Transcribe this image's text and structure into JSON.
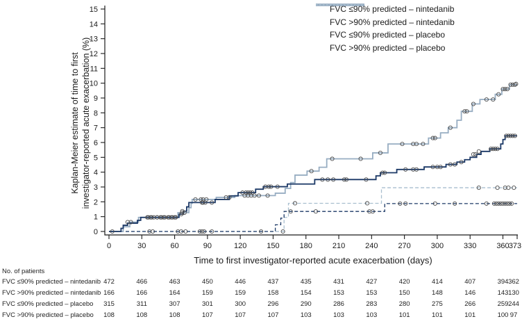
{
  "chart_data": {
    "type": "line",
    "subtype": "kaplan-meier-step",
    "title": "",
    "ylabel": "Kaplan-Meier estimate of time to first\ninvestigator-reported acute exacerbation (%)",
    "xlabel": "Time to first investigator-reported acute exacerbation (days)",
    "xlim": [
      0,
      373
    ],
    "ylim": [
      0,
      15
    ],
    "x_ticks": [
      0,
      30,
      60,
      90,
      120,
      150,
      180,
      210,
      240,
      270,
      300,
      330,
      360,
      373
    ],
    "y_ticks": [
      0,
      1,
      2,
      3,
      4,
      5,
      6,
      7,
      8,
      9,
      10,
      11,
      12,
      13,
      14,
      15
    ],
    "grid": false,
    "legend_position": "top-right",
    "marker_color": "#4d4d4d",
    "axis_color": "#1a1a1a",
    "series": [
      {
        "name": "FVC ≤90% predicted – nintedanib",
        "color": "#1b3866",
        "dash": "solid",
        "final_value": 6.45,
        "steps": [
          [
            0,
            0
          ],
          [
            11,
            0.21
          ],
          [
            13,
            0.42
          ],
          [
            17,
            0.56
          ],
          [
            26,
            0.75
          ],
          [
            29,
            0.95
          ],
          [
            64,
            1.16
          ],
          [
            68,
            1.37
          ],
          [
            71,
            1.66
          ],
          [
            73,
            1.95
          ],
          [
            97,
            2.16
          ],
          [
            110,
            2.4
          ],
          [
            118,
            2.62
          ],
          [
            134,
            2.85
          ],
          [
            141,
            3.02
          ],
          [
            163,
            3.2
          ],
          [
            188,
            3.5
          ],
          [
            244,
            3.75
          ],
          [
            248,
            3.96
          ],
          [
            263,
            4.18
          ],
          [
            288,
            4.35
          ],
          [
            308,
            4.52
          ],
          [
            318,
            4.68
          ],
          [
            325,
            4.84
          ],
          [
            330,
            5.0
          ],
          [
            336,
            5.2
          ],
          [
            340,
            5.4
          ],
          [
            348,
            5.57
          ],
          [
            358,
            5.9
          ],
          [
            360,
            6.2
          ],
          [
            362,
            6.45
          ]
        ],
        "censors": [
          [
            3,
            0
          ],
          [
            35,
            0.95
          ],
          [
            38,
            0.95
          ],
          [
            41,
            0.95
          ],
          [
            44,
            0.95
          ],
          [
            47,
            0.95
          ],
          [
            50,
            0.95
          ],
          [
            54,
            0.95
          ],
          [
            57,
            0.95
          ],
          [
            60,
            0.95
          ],
          [
            66,
            1.16
          ],
          [
            67,
            1.37
          ],
          [
            85,
            1.95
          ],
          [
            86,
            1.95
          ],
          [
            88,
            1.95
          ],
          [
            94,
            1.95
          ],
          [
            122,
            2.62
          ],
          [
            125,
            2.62
          ],
          [
            127,
            2.62
          ],
          [
            129,
            2.62
          ],
          [
            131,
            2.62
          ],
          [
            143,
            3.02
          ],
          [
            146,
            3.02
          ],
          [
            148,
            3.02
          ],
          [
            154,
            3.02
          ],
          [
            195,
            3.5
          ],
          [
            200,
            3.5
          ],
          [
            205,
            3.5
          ],
          [
            215,
            3.5
          ],
          [
            217,
            3.5
          ],
          [
            235,
            3.5
          ],
          [
            250,
            3.96
          ],
          [
            252,
            3.96
          ],
          [
            271,
            4.18
          ],
          [
            278,
            4.18
          ],
          [
            281,
            4.18
          ],
          [
            296,
            4.35
          ],
          [
            300,
            4.35
          ],
          [
            303,
            4.35
          ],
          [
            312,
            4.52
          ],
          [
            316,
            4.52
          ],
          [
            322,
            4.68
          ],
          [
            333,
            5.2
          ],
          [
            335,
            5.2
          ],
          [
            338,
            5.4
          ],
          [
            349,
            5.57
          ],
          [
            351,
            5.57
          ],
          [
            353,
            5.57
          ],
          [
            355,
            5.57
          ],
          [
            363,
            6.45
          ],
          [
            365,
            6.45
          ],
          [
            367,
            6.45
          ],
          [
            369,
            6.45
          ],
          [
            371,
            6.45
          ]
        ]
      },
      {
        "name": "FVC >90% predicted – nintedanib",
        "color": "#1b3866",
        "dash": "dashed",
        "final_value": 1.88,
        "steps": [
          [
            0,
            0
          ],
          [
            152,
            0.45
          ],
          [
            157,
            0.9
          ],
          [
            160,
            1.35
          ],
          [
            252,
            1.88
          ]
        ],
        "censors": [
          [
            40,
            0
          ],
          [
            63,
            0
          ],
          [
            85,
            0
          ],
          [
            94,
            0
          ],
          [
            166,
            1.35
          ],
          [
            189,
            1.35
          ],
          [
            238,
            1.35
          ],
          [
            241,
            1.35
          ],
          [
            266,
            1.88
          ],
          [
            271,
            1.88
          ],
          [
            298,
            1.88
          ],
          [
            316,
            1.88
          ],
          [
            345,
            1.88
          ],
          [
            352,
            1.88
          ],
          [
            354,
            1.88
          ],
          [
            356,
            1.88
          ],
          [
            358,
            1.88
          ],
          [
            360,
            1.88
          ],
          [
            362,
            1.88
          ],
          [
            364,
            1.88
          ],
          [
            366,
            1.88
          ],
          [
            368,
            1.88
          ]
        ]
      },
      {
        "name": "FVC ≤90% predicted – placebo",
        "color": "#97adc2",
        "dash": "solid",
        "final_value": 9.9,
        "steps": [
          [
            0,
            0
          ],
          [
            13,
            0.32
          ],
          [
            19,
            0.63
          ],
          [
            27,
            0.95
          ],
          [
            63,
            1.27
          ],
          [
            73,
            1.6
          ],
          [
            75,
            1.9
          ],
          [
            76,
            2.16
          ],
          [
            98,
            2.3
          ],
          [
            115,
            2.42
          ],
          [
            152,
            2.58
          ],
          [
            161,
            2.9
          ],
          [
            166,
            3.3
          ],
          [
            170,
            3.8
          ],
          [
            181,
            4.07
          ],
          [
            192,
            4.33
          ],
          [
            199,
            4.9
          ],
          [
            241,
            5.3
          ],
          [
            255,
            5.9
          ],
          [
            292,
            6.3
          ],
          [
            303,
            6.65
          ],
          [
            310,
            7.0
          ],
          [
            318,
            7.5
          ],
          [
            322,
            8.1
          ],
          [
            332,
            8.6
          ],
          [
            339,
            8.9
          ],
          [
            353,
            9.25
          ],
          [
            359,
            9.6
          ],
          [
            366,
            9.9
          ]
        ],
        "censors": [
          [
            17,
            0.63
          ],
          [
            20,
            0.63
          ],
          [
            36,
            0.95
          ],
          [
            39,
            0.95
          ],
          [
            44,
            0.95
          ],
          [
            48,
            0.95
          ],
          [
            51,
            0.95
          ],
          [
            55,
            0.95
          ],
          [
            58,
            0.95
          ],
          [
            61,
            0.95
          ],
          [
            67,
            1.27
          ],
          [
            69,
            1.27
          ],
          [
            79,
            2.16
          ],
          [
            84,
            2.16
          ],
          [
            86,
            2.16
          ],
          [
            89,
            2.16
          ],
          [
            107,
            2.3
          ],
          [
            110,
            2.3
          ],
          [
            124,
            2.42
          ],
          [
            127,
            2.42
          ],
          [
            130,
            2.42
          ],
          [
            133,
            2.42
          ],
          [
            137,
            2.42
          ],
          [
            145,
            2.42
          ],
          [
            185,
            4.07
          ],
          [
            204,
            4.9
          ],
          [
            230,
            4.9
          ],
          [
            248,
            5.3
          ],
          [
            268,
            5.9
          ],
          [
            278,
            5.9
          ],
          [
            281,
            5.9
          ],
          [
            287,
            5.9
          ],
          [
            296,
            6.3
          ],
          [
            298,
            6.3
          ],
          [
            312,
            7.0
          ],
          [
            325,
            8.1
          ],
          [
            327,
            8.1
          ],
          [
            333,
            8.6
          ],
          [
            345,
            8.9
          ],
          [
            351,
            8.9
          ],
          [
            356,
            9.25
          ],
          [
            360,
            9.6
          ],
          [
            362,
            9.6
          ],
          [
            364,
            9.6
          ],
          [
            367,
            9.9
          ],
          [
            369,
            9.9
          ],
          [
            371,
            9.9
          ],
          [
            372,
            9.95
          ]
        ]
      },
      {
        "name": "FVC >90% predicted – placebo",
        "color": "#a8becf",
        "dash": "dashed",
        "final_value": 2.95,
        "steps": [
          [
            0,
            0
          ],
          [
            160,
            0.95
          ],
          [
            164,
            1.9
          ],
          [
            249,
            2.95
          ]
        ],
        "censors": [
          [
            37,
            0
          ],
          [
            66,
            0
          ],
          [
            70,
            0
          ],
          [
            83,
            0
          ],
          [
            87,
            0
          ],
          [
            139,
            0
          ],
          [
            159,
            0
          ],
          [
            170,
            1.9
          ],
          [
            236,
            1.9
          ],
          [
            338,
            2.95
          ],
          [
            355,
            2.95
          ],
          [
            362,
            2.95
          ],
          [
            365,
            2.95
          ],
          [
            370,
            2.95
          ]
        ]
      }
    ]
  },
  "risk_table": {
    "header": "No. of patients",
    "columns_days": [
      0,
      30,
      60,
      90,
      120,
      150,
      180,
      210,
      240,
      270,
      300,
      330,
      360,
      373
    ],
    "rows": [
      {
        "label": "FVC ≤90% predicted – nintedanib",
        "values": [
          472,
          466,
          463,
          450,
          446,
          437,
          435,
          431,
          427,
          420,
          414,
          407,
          394,
          362
        ]
      },
      {
        "label": "FVC >90% predicted – nintedanib",
        "values": [
          166,
          166,
          164,
          159,
          159,
          158,
          154,
          153,
          153,
          150,
          148,
          146,
          143,
          130
        ]
      },
      {
        "label": "FVC ≤90% predicted – placebo",
        "values": [
          315,
          311,
          307,
          301,
          300,
          296,
          290,
          286,
          283,
          280,
          275,
          266,
          259,
          244
        ]
      },
      {
        "label": "FVC >90% predicted – placebo",
        "values": [
          108,
          108,
          108,
          107,
          107,
          107,
          103,
          103,
          103,
          101,
          101,
          101,
          100,
          97
        ]
      }
    ]
  }
}
